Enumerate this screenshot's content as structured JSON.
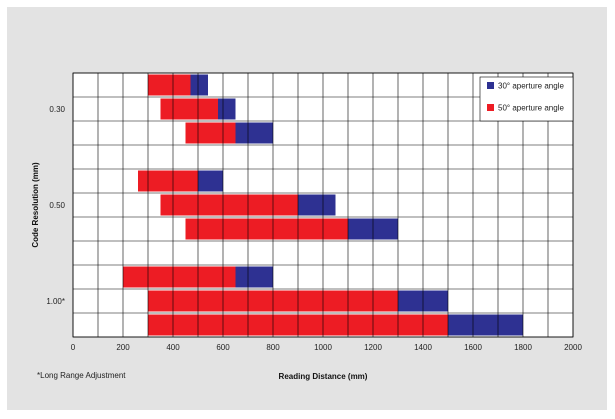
{
  "chart_data": {
    "type": "bar",
    "orientation": "horizontal",
    "stacked": true,
    "xlabel": "Reading Distance (mm)",
    "ylabel": "Code Resolution (mm)",
    "xlim": [
      0,
      2000
    ],
    "xticks": [
      0,
      200,
      400,
      600,
      800,
      1000,
      1200,
      1400,
      1600,
      1800,
      2000
    ],
    "grid": true,
    "legend_position": "top-right",
    "groups": [
      {
        "label": "0.30",
        "bars": [
          {
            "start": 300,
            "end_50": 470,
            "end_30": 540
          },
          {
            "start": 350,
            "end_50": 580,
            "end_30": 650
          },
          {
            "start": 450,
            "end_50": 650,
            "end_30": 800
          }
        ]
      },
      {
        "label": "0.50",
        "bars": [
          {
            "start": 260,
            "end_50": 500,
            "end_30": 600
          },
          {
            "start": 350,
            "end_50": 900,
            "end_30": 1050
          },
          {
            "start": 450,
            "end_50": 1100,
            "end_30": 1300
          }
        ]
      },
      {
        "label": "1.00*",
        "bars": [
          {
            "start": 200,
            "end_50": 650,
            "end_30": 800
          },
          {
            "start": 300,
            "end_50": 1300,
            "end_30": 1500
          },
          {
            "start": 300,
            "end_50": 1500,
            "end_30": 1800
          }
        ]
      }
    ],
    "series": [
      {
        "name": "30° aperture angle",
        "color": "#2e3192"
      },
      {
        "name": "50° aperture angle",
        "color": "#ed1c24"
      }
    ],
    "footnote": "*Long Range Adjustment"
  }
}
